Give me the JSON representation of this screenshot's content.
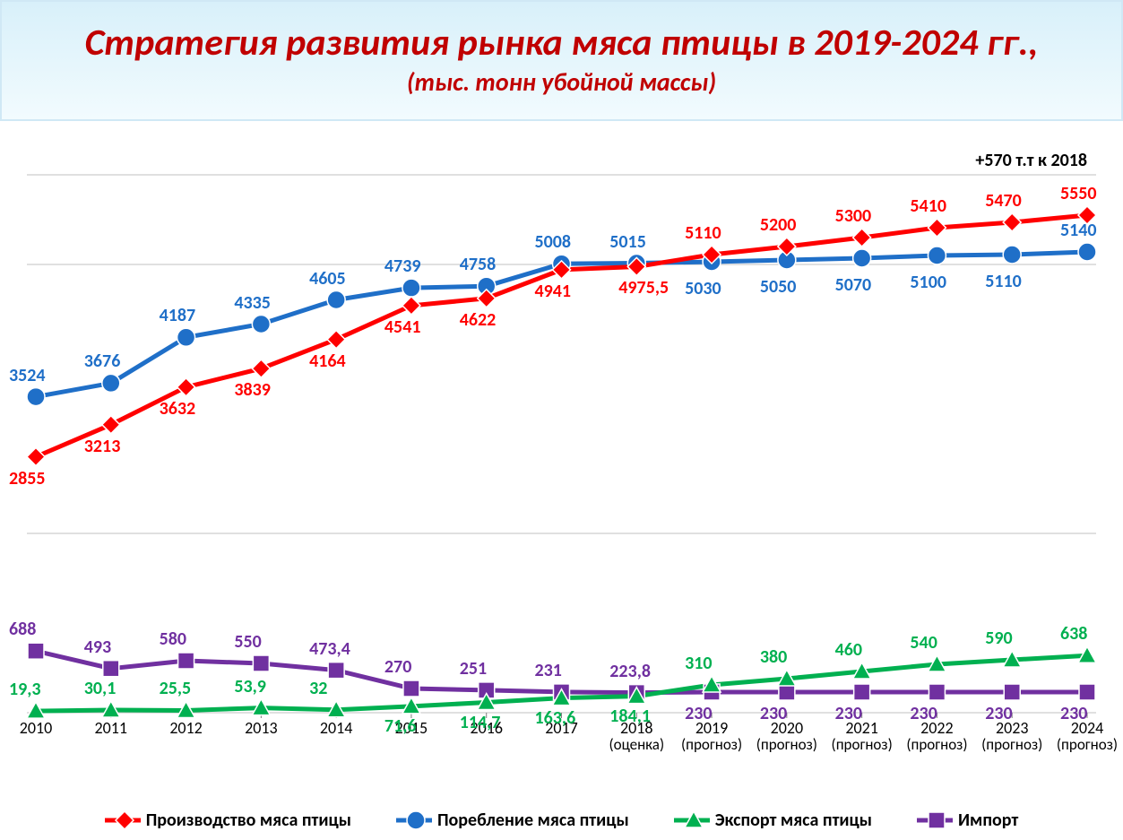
{
  "title": "Стратегия развития рынка мяса птицы в 2019-2024 гг.,",
  "subtitle": "(тыс. тонн убойной массы)",
  "annotation": "+570 т.т   к 2018",
  "chart": {
    "background_color": "#ffffff",
    "gridline_color": "#c0c0c0",
    "axis_color": "#808080",
    "x_labels": [
      "2010",
      "2011",
      "2012",
      "2013",
      "2014",
      "2015",
      "2016",
      "2017",
      "2018",
      "2019",
      "2020",
      "2021",
      "2022",
      "2023",
      "2024"
    ],
    "x_labels2": [
      "",
      "",
      "",
      "",
      "",
      "",
      "",
      "",
      "(оценка)",
      "(прогноз)",
      "(прогноз)",
      "(прогноз)",
      "(прогноз)",
      "(прогноз)",
      "(прогноз)"
    ],
    "x_label_fontsize": 18,
    "y_min": 0,
    "y_max": 6200,
    "y_gridlines": [
      0,
      2000,
      5000,
      6000
    ],
    "series": {
      "production": {
        "name": "Производство мяса птицы",
        "color": "#ff0000",
        "marker": "diamond",
        "line_width": 5,
        "marker_size": 10,
        "values": [
          2855,
          3213,
          3632,
          3839,
          4164,
          4541,
          4622,
          4941,
          4975.5,
          5110,
          5200,
          5300,
          5410,
          5470,
          5550
        ],
        "labels": [
          "2855",
          "3213",
          "3632",
          "3839",
          "4164",
          "4541",
          "4622",
          "4941",
          "4975,5",
          "5110",
          "5200",
          "5300",
          "5410",
          "5470",
          "5550"
        ],
        "label_pos": [
          "below",
          "below",
          "below",
          "below",
          "below",
          "below",
          "below",
          "below",
          "below",
          "above",
          "above",
          "above",
          "above",
          "above",
          "above"
        ]
      },
      "consumption": {
        "name": "Поребление мяса птицы",
        "color": "#1f6fc8",
        "marker": "circle",
        "line_width": 5,
        "marker_size": 10,
        "values": [
          3524,
          3676,
          4187,
          4335,
          4605,
          4739,
          4758,
          5008,
          5015,
          5030,
          5050,
          5070,
          5100,
          5110,
          5140
        ],
        "labels": [
          "3524",
          "3676",
          "4187",
          "4335",
          "4605",
          "4739",
          "4758",
          "5008",
          "5015",
          "5030",
          "5050",
          "5070",
          "5100",
          "5110",
          "5140"
        ],
        "label_pos": [
          "above",
          "above",
          "above",
          "above",
          "above",
          "above",
          "above",
          "above",
          "above",
          "below",
          "below",
          "below",
          "below",
          "below",
          "above"
        ]
      },
      "export": {
        "name": "Экспорт мяса птицы",
        "color": "#00b050",
        "marker": "triangle",
        "line_width": 5,
        "marker_size": 10,
        "values": [
          19.3,
          30.1,
          25.5,
          53.9,
          32,
          71.6,
          114.7,
          163.6,
          184.1,
          310,
          380,
          460,
          540,
          590,
          638
        ],
        "labels": [
          "19,3",
          "30,1",
          "25,5",
          "53,9",
          "32",
          "71,6",
          "114,7",
          "163,6",
          "184,1",
          "310",
          "380",
          "460",
          "540",
          "590",
          "638"
        ],
        "label_pos": [
          "above",
          "above",
          "above",
          "above",
          "above",
          "below",
          "below",
          "below",
          "below",
          "above",
          "above",
          "above",
          "above",
          "above",
          "above"
        ]
      },
      "import": {
        "name": "Импорт",
        "color": "#7030a0",
        "marker": "square",
        "line_width": 5,
        "marker_size": 9,
        "values": [
          688,
          493,
          580,
          550,
          473.4,
          270,
          251,
          231,
          223.8,
          230,
          230,
          230,
          230,
          230,
          230
        ],
        "labels": [
          "688",
          "493",
          "580",
          "550",
          "473,4",
          "270",
          "251",
          "231",
          "223,8",
          "230",
          "230",
          "230",
          "230",
          "230",
          "230"
        ],
        "label_pos": [
          "above",
          "above",
          "above",
          "above",
          "above",
          "above",
          "above",
          "above",
          "above",
          "below",
          "below",
          "below",
          "below",
          "below",
          "below"
        ]
      }
    }
  },
  "legend": [
    {
      "key": "production",
      "label": "Производство мяса птицы"
    },
    {
      "key": "consumption",
      "label": "Поребление мяса птицы"
    },
    {
      "key": "export",
      "label": "Экспорт мяса птицы"
    },
    {
      "key": "import",
      "label": "Импорт"
    }
  ]
}
